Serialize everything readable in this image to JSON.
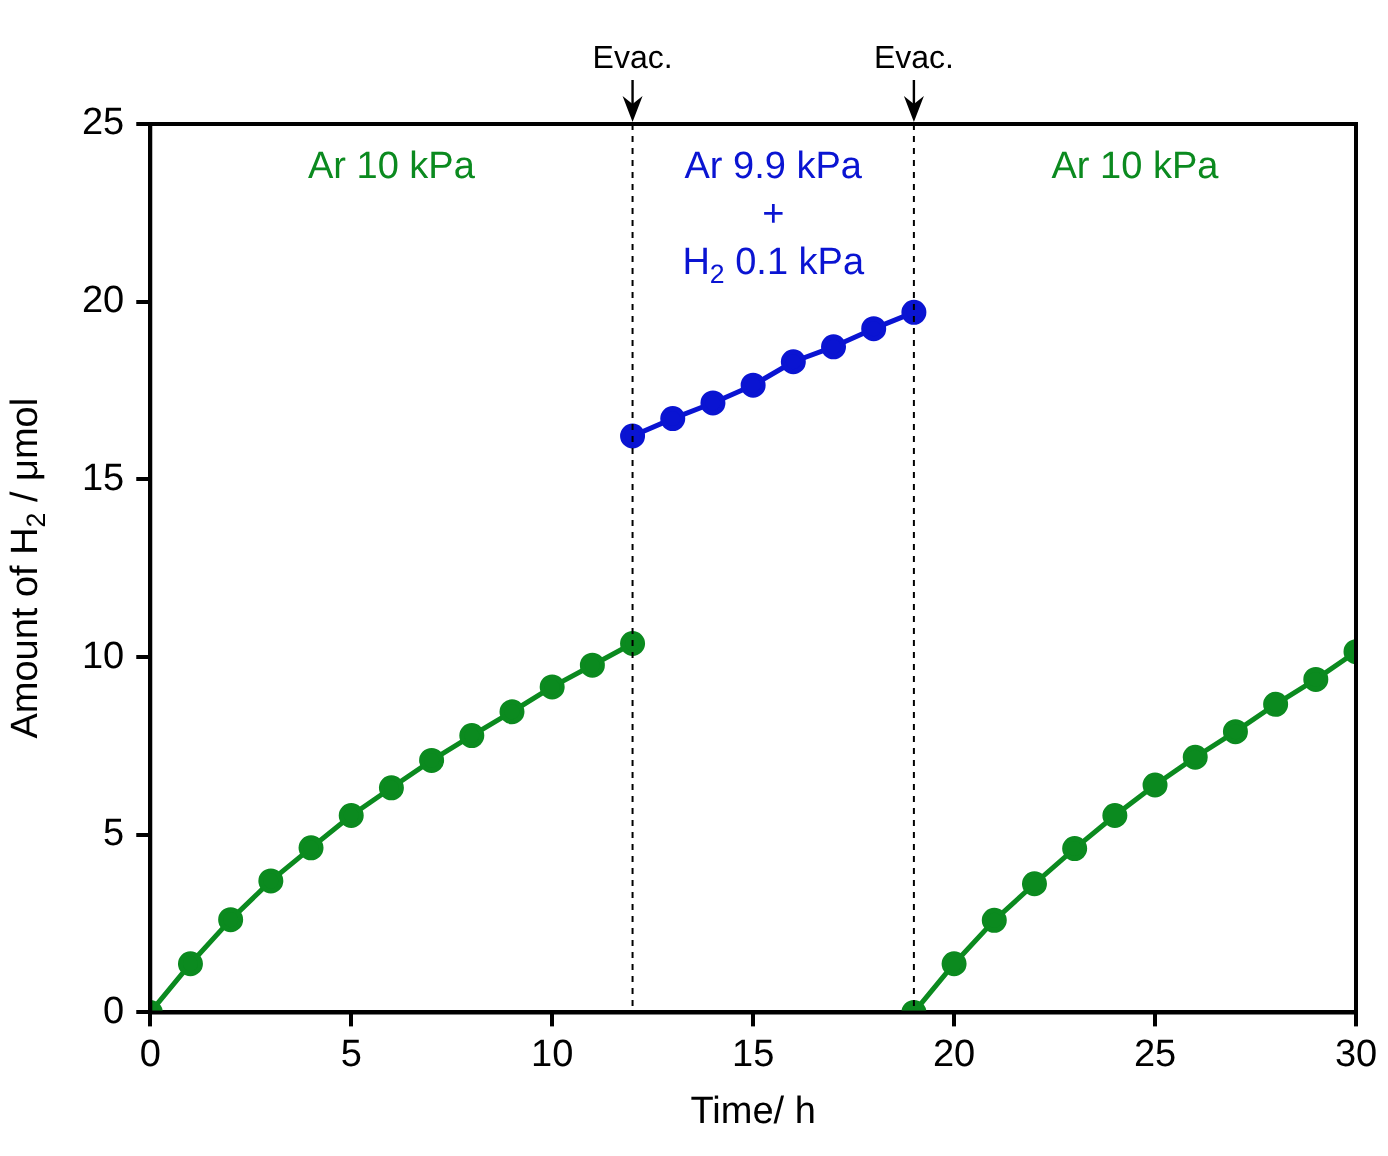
{
  "chart_data": {
    "type": "line",
    "xlabel": "Time/ h",
    "ylabel": "Amount of H$_{2}$ / μmol",
    "series": [
      {
        "color": "#0b8a1f",
        "x": [
          0,
          1,
          2,
          3,
          4,
          5,
          6,
          7,
          8,
          9,
          10,
          11,
          12
        ],
        "values": [
          0,
          1.37,
          2.61,
          3.7,
          4.63,
          5.54,
          6.32,
          7.09,
          7.79,
          8.46,
          9.16,
          9.77,
          10.38
        ]
      },
      {
        "color": "#0a14d2",
        "x": [
          12,
          13,
          14,
          15,
          16,
          17,
          18,
          19
        ],
        "values": [
          16.22,
          16.71,
          17.15,
          17.65,
          18.31,
          18.73,
          19.24,
          19.7
        ]
      },
      {
        "color": "#0b8a1f",
        "x": [
          19,
          20,
          21,
          22,
          23,
          24,
          25,
          26,
          27,
          28,
          29,
          30
        ],
        "values": [
          0,
          1.37,
          2.59,
          3.62,
          4.61,
          5.54,
          6.4,
          7.18,
          7.9,
          8.67,
          9.37,
          10.15
        ]
      }
    ],
    "xlim": [
      0,
      30
    ],
    "xticks": [
      0,
      5,
      10,
      15,
      20,
      25,
      30
    ],
    "ylim": [
      0,
      25
    ],
    "yticks": [
      0,
      5,
      10,
      15,
      20,
      25
    ],
    "grid": false,
    "legend": false,
    "marker": "circle",
    "line_style": "solid",
    "ref_lines": [
      {
        "axis": "x",
        "value": 12,
        "label": "Evac.",
        "line_style": "dotted"
      },
      {
        "axis": "x",
        "value": 19,
        "label": "Evac.",
        "line_style": "dotted"
      }
    ],
    "annotations": [
      "Ar 10 kPa",
      "Ar 9.9 kPa\n+\nH$_{2}$ 0.1 kPa",
      "Ar 10 kPa"
    ]
  }
}
